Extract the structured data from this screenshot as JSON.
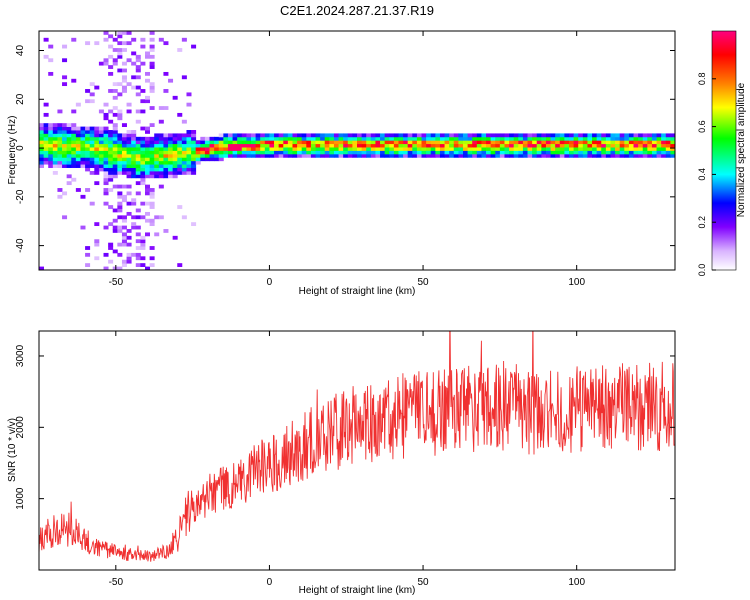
{
  "figure": {
    "title": "C2E1.2024.287.21.37.R19"
  },
  "chart_data": [
    {
      "type": "heatmap",
      "xlabel": "Height of straight line (km)",
      "ylabel": "Frequency (Hz)",
      "xlim": [
        -75,
        132
      ],
      "ylim": [
        -50,
        48
      ],
      "x_ticks": [
        -50,
        0,
        50,
        100
      ],
      "y_ticks": [
        -40,
        -20,
        0,
        20,
        40
      ],
      "grid": false,
      "band_centerline": [
        {
          "x": -74,
          "y": 0.5
        },
        {
          "x": -60,
          "y": -0.5
        },
        {
          "x": -50,
          "y": -3
        },
        {
          "x": -42,
          "y": -5
        },
        {
          "x": -35,
          "y": -4
        },
        {
          "x": -28,
          "y": -3
        },
        {
          "x": -20,
          "y": -1
        },
        {
          "x": -15,
          "y": 0
        },
        {
          "x": 0,
          "y": 0.5
        },
        {
          "x": 50,
          "y": 0.5
        },
        {
          "x": 100,
          "y": 0.5
        },
        {
          "x": 131,
          "y": 0.5
        }
      ],
      "colorbar": {
        "label": "Normalized spectral amplitude",
        "ticks": [
          "0.0",
          "0.2",
          "0.4",
          "0.6",
          "0.8"
        ],
        "range": [
          0,
          1
        ],
        "colors": [
          "#ffffff",
          "#d9b3ff",
          "#8000ff",
          "#0000ff",
          "#00ffff",
          "#00ff00",
          "#ffff00",
          "#ff8000",
          "#ff0000",
          "#ff0080"
        ]
      }
    },
    {
      "type": "line",
      "xlabel": "Height of straight line (km)",
      "ylabel": "SNR (10 * v/v)",
      "xlim": [
        -75,
        132
      ],
      "ylim": [
        0,
        3350
      ],
      "x_ticks": [
        -50,
        0,
        50,
        100
      ],
      "y_ticks": [
        1000,
        2000,
        3000
      ],
      "grid": false,
      "series": [
        {
          "color": "#f03030",
          "x": [
            -75,
            -72,
            -69,
            -66,
            -63,
            -60,
            -57,
            -54,
            -51,
            -48,
            -45,
            -42,
            -39,
            -36,
            -33,
            -30,
            -27,
            -24,
            -21,
            -18,
            -15,
            -12,
            -9,
            -6,
            -3,
            0,
            3,
            6,
            9,
            12,
            15,
            18,
            21,
            24,
            27,
            30,
            33,
            36,
            39,
            42,
            45,
            48,
            51,
            54,
            57,
            60,
            63,
            66,
            69,
            72,
            75,
            78,
            81,
            84,
            87,
            90,
            93,
            96,
            99,
            102,
            105,
            108,
            111,
            114,
            117,
            120,
            123,
            126,
            129,
            132
          ],
          "y": [
            400,
            500,
            550,
            600,
            500,
            400,
            350,
            300,
            260,
            230,
            210,
            200,
            200,
            220,
            260,
            450,
            750,
            900,
            1000,
            1100,
            1150,
            1200,
            1280,
            1350,
            1420,
            1480,
            1550,
            1620,
            1690,
            1760,
            1830,
            1880,
            1930,
            1980,
            2020,
            2060,
            2090,
            2110,
            2130,
            2150,
            2160,
            2180,
            2200,
            2220,
            2240,
            2250,
            2260,
            2280,
            2290,
            2300,
            2300,
            2290,
            2270,
            2250,
            2240,
            2230,
            2220,
            2230,
            2240,
            2250,
            2260,
            2270,
            2270,
            2280,
            2290,
            2290,
            2300,
            2300,
            2300,
            2300
          ]
        }
      ]
    }
  ]
}
